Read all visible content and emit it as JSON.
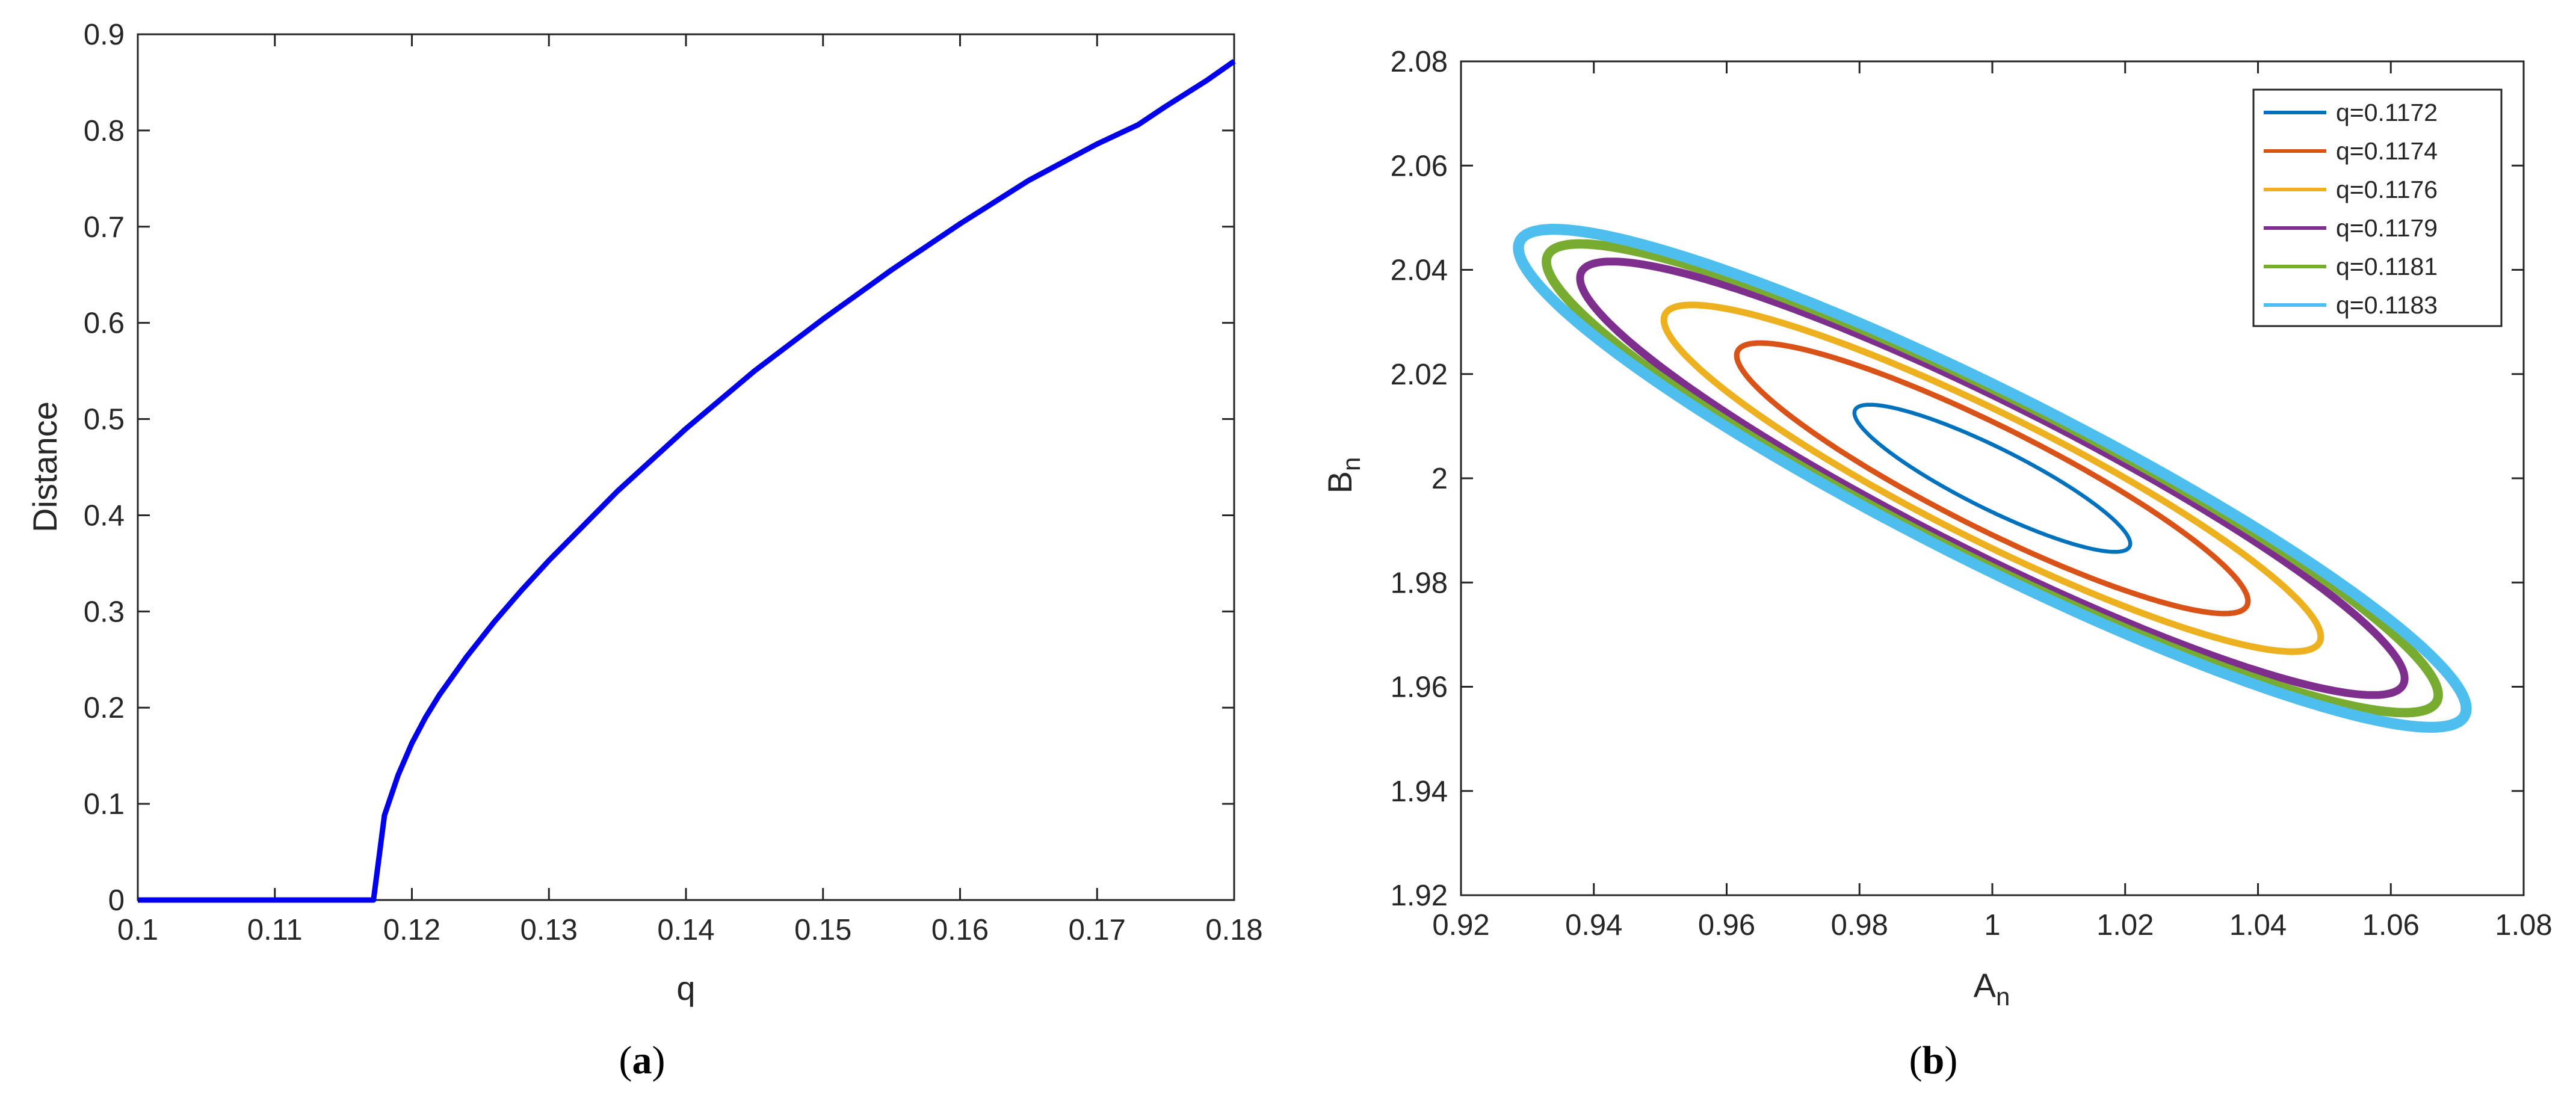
{
  "chart_data": [
    {
      "type": "line",
      "panel": "a",
      "caption_letter": "a",
      "xlabel": "q",
      "ylabel": "Distance",
      "xlim": [
        0.1,
        0.18
      ],
      "ylim": [
        0,
        0.9
      ],
      "xticks": [
        0.1,
        0.11,
        0.12,
        0.13,
        0.14,
        0.15,
        0.16,
        0.17,
        0.18
      ],
      "xtick_labels": [
        "0.1",
        "0.11",
        "0.12",
        "0.13",
        "0.14",
        "0.15",
        "0.16",
        "0.17",
        "0.18"
      ],
      "yticks": [
        0,
        0.1,
        0.2,
        0.3,
        0.4,
        0.5,
        0.6,
        0.7,
        0.8,
        0.9
      ],
      "ytick_labels": [
        "0",
        "0.1",
        "0.2",
        "0.3",
        "0.4",
        "0.5",
        "0.6",
        "0.7",
        "0.8",
        "0.9"
      ],
      "grid": false,
      "series": [
        {
          "color": "#0000ee",
          "x": [
            0.1,
            0.11,
            0.117,
            0.1172,
            0.118,
            0.119,
            0.12,
            0.121,
            0.122,
            0.124,
            0.126,
            0.128,
            0.13,
            0.135,
            0.14,
            0.145,
            0.15,
            0.155,
            0.16,
            0.165,
            0.17,
            0.173,
            0.175,
            0.178,
            0.18
          ],
          "y": [
            0,
            0,
            0,
            0,
            0.088,
            0.13,
            0.163,
            0.19,
            0.213,
            0.253,
            0.289,
            0.322,
            0.353,
            0.425,
            0.49,
            0.55,
            0.604,
            0.655,
            0.703,
            0.748,
            0.786,
            0.806,
            0.825,
            0.852,
            0.872
          ]
        }
      ]
    },
    {
      "type": "line",
      "panel": "b",
      "caption_letter": "b",
      "xlabel": "A",
      "xlabel_sub": "n",
      "ylabel": "B",
      "ylabel_sub": "n",
      "xlim": [
        0.92,
        1.08
      ],
      "ylim": [
        1.92,
        2.08
      ],
      "xticks": [
        0.92,
        0.94,
        0.96,
        0.98,
        1,
        1.02,
        1.04,
        1.06,
        1.08
      ],
      "xtick_labels": [
        "0.92",
        "0.94",
        "0.96",
        "0.98",
        "1",
        "1.02",
        "1.04",
        "1.06",
        "1.08"
      ],
      "yticks": [
        1.92,
        1.94,
        1.96,
        1.98,
        2,
        2.02,
        2.04,
        2.06,
        2.08
      ],
      "ytick_labels": [
        "1.92",
        "1.94",
        "1.96",
        "1.98",
        "2",
        "2.02",
        "2.04",
        "2.06",
        "2.08"
      ],
      "grid": false,
      "legend_position": "top-right",
      "series": [
        {
          "name": "q=0.1172",
          "color": "#0072bd",
          "center": [
            1.0,
            2.0
          ],
          "a": 0.0245,
          "b": 0.0055,
          "angle_deg": -33,
          "line_width": 1.0
        },
        {
          "name": "q=0.1174",
          "color": "#d95319",
          "center": [
            1.0,
            2.0
          ],
          "a": 0.0455,
          "b": 0.0092,
          "angle_deg": -33,
          "line_width": 1.4
        },
        {
          "name": "q=0.1176",
          "color": "#edb120",
          "center": [
            1.0,
            2.0
          ],
          "a": 0.0585,
          "b": 0.0114,
          "angle_deg": -33,
          "line_width": 1.7
        },
        {
          "name": "q=0.1179",
          "color": "#7e2f8e",
          "center": [
            1.0,
            2.0
          ],
          "a": 0.0735,
          "b": 0.0135,
          "angle_deg": -33,
          "line_width": 2.0
        },
        {
          "name": "q=0.1181",
          "color": "#77ac30",
          "center": [
            1.0,
            2.0
          ],
          "a": 0.0795,
          "b": 0.0145,
          "angle_deg": -33,
          "line_width": 2.4
        },
        {
          "name": "q=0.1183",
          "color": "#4dbeee",
          "center": [
            1.0,
            2.0
          ],
          "a": 0.0845,
          "b": 0.0153,
          "angle_deg": -33,
          "line_width": 2.8
        }
      ]
    }
  ]
}
